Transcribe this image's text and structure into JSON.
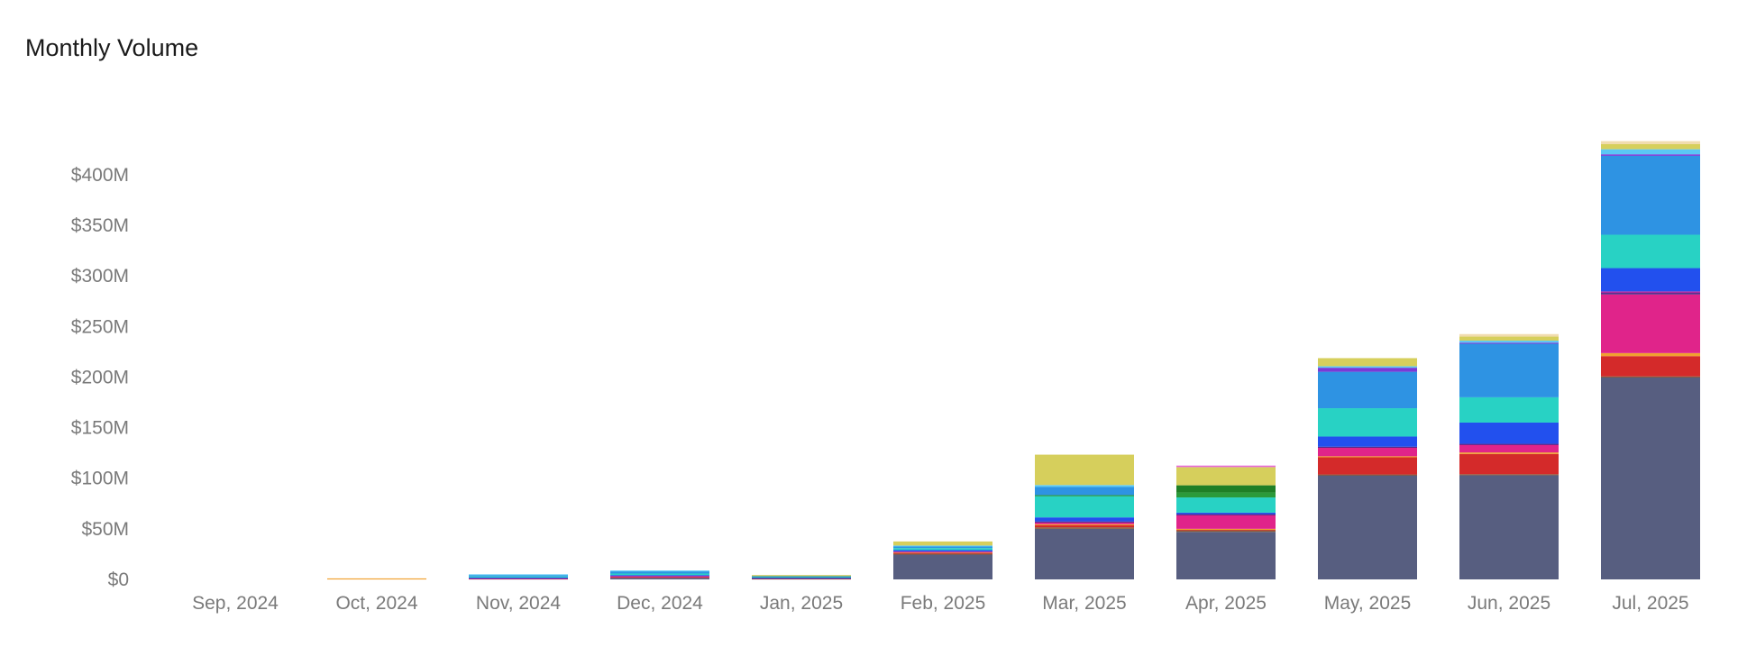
{
  "chart_data": {
    "type": "bar",
    "stacked": true,
    "title": "Monthly Volume",
    "xlabel": "",
    "ylabel": "",
    "ylim": [
      0,
      440
    ],
    "y_unit": "millions USD",
    "y_ticks": [
      0,
      50,
      100,
      150,
      200,
      250,
      300,
      350,
      400
    ],
    "y_tick_labels": [
      "$0",
      "$50M",
      "$100M",
      "$150M",
      "$200M",
      "$250M",
      "$300M",
      "$350M",
      "$400M"
    ],
    "grid": false,
    "legend": "none",
    "categories": [
      "Sep, 2024",
      "Oct, 2024",
      "Nov, 2024",
      "Dec, 2024",
      "Jan, 2025",
      "Feb, 2025",
      "Mar, 2025",
      "Apr, 2025",
      "May, 2025",
      "Jun, 2025",
      "Jul, 2025"
    ],
    "series": [
      {
        "color": "#575e80",
        "values": [
          0,
          0,
          1.0,
          1.5,
          1.0,
          25,
          50,
          47,
          103,
          103,
          200
        ]
      },
      {
        "color": "#8b5a3c",
        "values": [
          0,
          0,
          0,
          0,
          0,
          0.5,
          1.5,
          1.5,
          0.7,
          1.0,
          0.7
        ]
      },
      {
        "color": "#d42a2a",
        "values": [
          0,
          0,
          0.3,
          1.5,
          0.5,
          1.0,
          2.0,
          1.0,
          17,
          20,
          20
        ]
      },
      {
        "color": "#f0a030",
        "values": [
          0,
          1.0,
          0,
          0,
          0,
          0.5,
          1.0,
          0.5,
          1.0,
          1.5,
          3.0
        ]
      },
      {
        "color": "#e0248a",
        "values": [
          0,
          0,
          0.2,
          0.3,
          0,
          0.5,
          2.0,
          14,
          9,
          8,
          58
        ]
      },
      {
        "color": "#4b2a8a",
        "values": [
          0,
          0,
          0,
          0,
          0,
          0,
          0.8,
          0.5,
          0.5,
          0.5,
          1.5
        ]
      },
      {
        "color": "#ad2aa0",
        "values": [
          0,
          0,
          0,
          0,
          0,
          0,
          0,
          0,
          0,
          0,
          1.5
        ]
      },
      {
        "color": "#2250ee",
        "values": [
          0,
          0,
          0.5,
          1.0,
          0.5,
          1.5,
          4.0,
          1.5,
          10,
          21,
          23
        ]
      },
      {
        "color": "#28d2c4",
        "values": [
          0,
          0,
          1.0,
          1.5,
          1.0,
          2.0,
          21,
          15,
          28,
          25,
          33
        ]
      },
      {
        "color": "#2b9a3a",
        "values": [
          0,
          0,
          0,
          0,
          0.5,
          0,
          1.0,
          5.0,
          0,
          0,
          0
        ]
      },
      {
        "color": "#1f7f26",
        "values": [
          0,
          0,
          0,
          0,
          0,
          0,
          0,
          7.0,
          0,
          0,
          0
        ]
      },
      {
        "color": "#2e93e3",
        "values": [
          0,
          0,
          1.5,
          2.5,
          0.3,
          2.0,
          8.0,
          0,
          36,
          53,
          78
        ]
      },
      {
        "color": "#7a3ad6",
        "values": [
          0,
          0,
          0,
          0,
          0,
          0,
          0,
          0,
          4.0,
          1.0,
          1.5
        ]
      },
      {
        "color": "#5bc8f5",
        "values": [
          0,
          0,
          0.5,
          0.5,
          0,
          0.5,
          2.0,
          0,
          1.5,
          2.0,
          5.0
        ]
      },
      {
        "color": "#d6cf5c",
        "values": [
          0,
          0,
          0,
          0,
          0.5,
          4.0,
          30,
          18,
          8,
          4,
          5
        ]
      },
      {
        "color": "#e76ad8",
        "values": [
          0,
          0,
          0,
          0,
          0,
          0,
          0,
          1.5,
          0,
          0,
          0
        ]
      },
      {
        "color": "#f1dcae",
        "values": [
          0,
          0,
          0,
          0,
          0,
          0,
          0,
          0,
          0,
          2.5,
          3.0
        ]
      }
    ]
  }
}
